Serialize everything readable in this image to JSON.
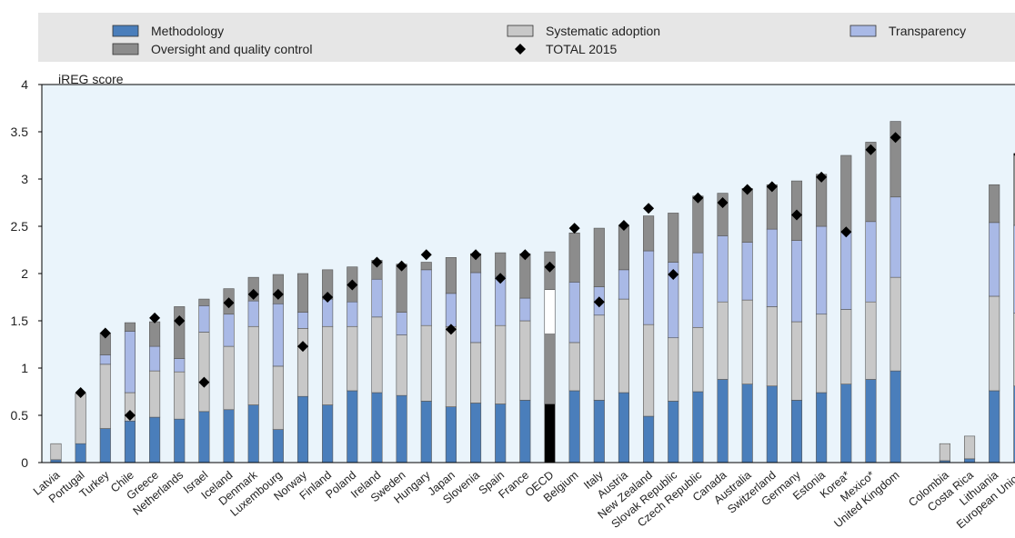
{
  "chart_data": {
    "type": "bar",
    "stacked": true,
    "ylabel": "iREG score",
    "ylim": [
      0,
      4
    ],
    "yticks": [
      0,
      0.5,
      1,
      1.5,
      2,
      2.5,
      3,
      3.5,
      4
    ],
    "ytick_labels": [
      "0",
      "0.5",
      "1",
      "1.5",
      "2",
      "2.5",
      "3",
      "3.5",
      "4"
    ],
    "grid": false,
    "legend_position": "top",
    "categories": [
      "Latvia",
      "Portugal",
      "Turkey",
      "Chile",
      "Greece",
      "Netherlands",
      "Israel",
      "Iceland",
      "Denmark",
      "Luxembourg",
      "Norway",
      "Finland",
      "Poland",
      "Ireland",
      "Sweden",
      "Hungary",
      "Japan",
      "Slovenia",
      "Spain",
      "France",
      "OECD",
      "Belgium",
      "Italy",
      "Austria",
      "New Zealand",
      "Slovak Republic",
      "Czech Republic",
      "Canada",
      "Australia",
      "Switzerland",
      "Germany",
      "Estonia",
      "Korea*",
      "Mexico*",
      "United Kingdom",
      "",
      "Colombia",
      "Costa Rica",
      "Lithuania",
      "European Union"
    ],
    "highlight_category": "OECD",
    "series": [
      {
        "name": "Methodology",
        "color": "#4a7ebb",
        "values": [
          0.03,
          0.2,
          0.36,
          0.44,
          0.48,
          0.46,
          0.54,
          0.56,
          0.61,
          0.35,
          0.7,
          0.61,
          0.76,
          0.74,
          0.71,
          0.65,
          0.59,
          0.63,
          0.62,
          0.66,
          0.62,
          0.76,
          0.66,
          0.74,
          0.49,
          0.65,
          0.75,
          0.88,
          0.83,
          0.81,
          0.66,
          0.74,
          0.83,
          0.88,
          0.97,
          null,
          0.02,
          0.04,
          0.76,
          0.81
        ]
      },
      {
        "name": "Systematic adoption",
        "color": "#c8c8c8",
        "values": [
          0.17,
          0.53,
          0.68,
          0.3,
          0.49,
          0.5,
          0.84,
          0.67,
          0.83,
          0.67,
          0.72,
          0.83,
          0.68,
          0.8,
          0.64,
          0.8,
          0.85,
          0.64,
          0.83,
          0.84,
          0.74,
          0.51,
          0.9,
          0.99,
          0.97,
          0.67,
          0.68,
          0.82,
          0.89,
          0.84,
          0.83,
          0.83,
          0.79,
          0.82,
          0.99,
          null,
          0.18,
          0.24,
          1.0,
          0.77
        ]
      },
      {
        "name": "Transparency",
        "color": "#a9b9e6",
        "values": [
          0,
          0,
          0.1,
          0.65,
          0.26,
          0.14,
          0.28,
          0.34,
          0.27,
          0.66,
          0.17,
          0.29,
          0.26,
          0.4,
          0.24,
          0.59,
          0.35,
          0.74,
          0.52,
          0.24,
          0.47,
          0.64,
          0.3,
          0.31,
          0.78,
          0.8,
          0.79,
          0.7,
          0.61,
          0.82,
          0.86,
          0.93,
          0.83,
          0.85,
          0.85,
          null,
          0,
          0,
          0.78,
          0.93
        ]
      },
      {
        "name": "Oversight and quality control",
        "color": "#8c8c8c",
        "values": [
          0,
          0,
          0.23,
          0.09,
          0.26,
          0.55,
          0.07,
          0.27,
          0.25,
          0.31,
          0.41,
          0.31,
          0.37,
          0.2,
          0.51,
          0.08,
          0.38,
          0.2,
          0.25,
          0.47,
          0.4,
          0.52,
          0.62,
          0.47,
          0.37,
          0.52,
          0.6,
          0.45,
          0.57,
          0.47,
          0.63,
          0.55,
          0.8,
          0.84,
          0.8,
          null,
          0,
          0,
          0.4,
          0.76
        ]
      }
    ],
    "markers": {
      "name": "TOTAL 2015",
      "color": "#000000",
      "values": [
        null,
        0.74,
        1.37,
        0.5,
        1.53,
        1.5,
        0.85,
        1.69,
        1.78,
        1.78,
        1.23,
        1.75,
        1.88,
        2.12,
        2.08,
        2.2,
        1.41,
        2.2,
        1.95,
        2.2,
        2.07,
        2.48,
        1.7,
        2.51,
        2.69,
        1.99,
        2.8,
        2.75,
        2.89,
        2.92,
        2.62,
        3.02,
        2.44,
        3.31,
        3.44,
        null,
        null,
        null,
        null,
        3.26
      ]
    },
    "legend": [
      {
        "label": "Methodology",
        "kind": "box",
        "color": "#4a7ebb"
      },
      {
        "label": "Systematic adoption",
        "kind": "box",
        "color": "#c8c8c8"
      },
      {
        "label": "Transparency",
        "kind": "box",
        "color": "#a9b9e6"
      },
      {
        "label": "Oversight and quality control",
        "kind": "box",
        "color": "#8c8c8c"
      },
      {
        "label": "TOTAL 2015",
        "kind": "diamond",
        "color": "#000000"
      }
    ],
    "background_color": "#eaf4fb",
    "legend_background": "#e6e6e6"
  }
}
